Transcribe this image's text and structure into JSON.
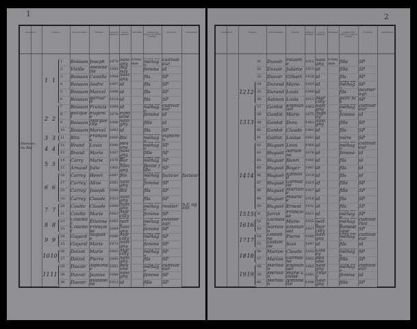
{
  "header_columns": [
    "Désignation",
    "Numéros",
    "Noms de famille",
    "Prénoms",
    "Année de naissance",
    "Lieu de naissance",
    "Nationalité",
    "Situation par rapport au chef de ménage",
    "Profession",
    "Observations"
  ],
  "left_page": {
    "page_number": "1",
    "margin_label": "Hameau du Bas",
    "households": [
      {
        "label": "1",
        "first": 1,
        "last": 6
      },
      {
        "label": "2",
        "first": 7,
        "last": 10
      },
      {
        "label": "3",
        "first": 11,
        "last": 11
      },
      {
        "label": "4",
        "first": 12,
        "last": 13
      },
      {
        "label": "5",
        "first": 14,
        "last": 15
      },
      {
        "label": "6",
        "first": 16,
        "last": 19
      },
      {
        "label": "7",
        "first": 20,
        "last": 21
      },
      {
        "label": "8",
        "first": 22,
        "last": 23
      },
      {
        "label": "9",
        "first": 24,
        "last": 25
      },
      {
        "label": "10",
        "first": 26,
        "last": 27
      },
      {
        "label": "11",
        "first": 28,
        "last": 30
      }
    ],
    "rows": [
      [
        "1",
        "Boisson",
        "Joseph",
        "1870",
        "Savigny",
        "Française",
        "chef de ménage",
        "cultivateur",
        ""
      ],
      [
        "2",
        "Vieille",
        "Antoinette",
        "1883",
        "Aignay",
        "",
        "femme",
        "id",
        ""
      ],
      [
        "3",
        "Boisson",
        "Camille",
        "1904",
        "Savigny",
        "",
        "fils",
        "SP",
        ""
      ],
      [
        "4",
        "Boisson",
        "André",
        "1907",
        "id",
        "",
        "fils",
        "SP",
        ""
      ],
      [
        "5",
        "Boisson",
        "Marcel",
        "1908",
        "id",
        "",
        "fils",
        "SP",
        ""
      ],
      [
        "6",
        "Boisson",
        "Bernard",
        "1910",
        "id",
        "",
        "fils",
        "SP",
        ""
      ],
      [
        "7",
        "Boisson",
        "Francis",
        "1864",
        "id",
        "",
        "chef de ménage",
        "cultivateur",
        ""
      ],
      [
        "8",
        "Bocquet",
        "Eugénie",
        "1878",
        "Fontaine",
        "",
        "femme",
        "id",
        ""
      ],
      [
        "9",
        "Boisson",
        "Marguerite",
        "1900",
        "Savigny",
        "",
        "fille",
        "id",
        ""
      ],
      [
        "10",
        "Boisson",
        "Marcel",
        "1902",
        "id",
        "",
        "fils",
        "SP",
        ""
      ],
      [
        "11",
        "Blin",
        "François",
        "1860",
        "Blé",
        "",
        "chef de ménage",
        "vigneron",
        ""
      ],
      [
        "12",
        "Brand",
        "Louis",
        "1880",
        "Beaune",
        "",
        "chef de ménage",
        "SP",
        ""
      ],
      [
        "13",
        "Brand",
        "Marie",
        "1907",
        "Savigny",
        "",
        "fille",
        "SP",
        ""
      ],
      [
        "14",
        "Carry",
        "Marie",
        "1870",
        "La Borne",
        "",
        "chef de ménage",
        "SP",
        ""
      ],
      [
        "15",
        "Arnaud",
        "Julie",
        "1902",
        "Savigny",
        "",
        "petite fille",
        "SP",
        ""
      ],
      [
        "16",
        "Carrey",
        "Henri",
        "1887",
        "Blé",
        "",
        "chef de ménage",
        "facteur",
        "facteur"
      ],
      [
        "17",
        "Carrey",
        "Aline",
        "1891",
        "Savigny",
        "",
        "femme",
        "SP",
        ""
      ],
      [
        "18",
        "Carrey",
        "Joseph",
        "1908",
        "Blé",
        "",
        "fils",
        "SP",
        ""
      ],
      [
        "19",
        "Carrey",
        "Claude",
        "1913",
        "Savigny",
        "",
        "fils",
        "SP",
        ""
      ],
      [
        "20",
        "Coutte",
        "Claude",
        "1860",
        "Savigny",
        "",
        "chef de ménage",
        "rentier",
        "S.P. agent"
      ],
      [
        "21",
        "Coutte",
        "Marie",
        "1863",
        "Marcilly",
        "",
        "femme",
        "SP",
        ""
      ],
      [
        "22",
        "Couchot",
        "Étienne",
        "1862",
        "Bonnette",
        "",
        "chef de ménage",
        "ouvrier agr.",
        ""
      ],
      [
        "23",
        "Couchot",
        "Françoise",
        "1864",
        "Savigny",
        "",
        "femme",
        "SP",
        ""
      ],
      [
        "24",
        "Guyard",
        "Auguste",
        "1866",
        "Marcilly",
        "",
        "chef de ménage",
        "SP",
        ""
      ],
      [
        "25",
        "Guyard",
        "Marie",
        "1873",
        "Savigny",
        "",
        "femme",
        "SP",
        ""
      ],
      [
        "26",
        "Doizot",
        "Marie",
        "1863",
        "Marcilly",
        "",
        "chef de ménage",
        "SP",
        ""
      ],
      [
        "27",
        "Doizot",
        "Pierre",
        "1891",
        "Savigny",
        "",
        "fils",
        "SP",
        ""
      ],
      [
        "28",
        "Duvoir",
        "Alphonse",
        "1881",
        "Beaune",
        "",
        "chef de ménage",
        "cultivateur",
        ""
      ],
      [
        "29",
        "Duvoir",
        "Jeanne",
        "1889",
        "Savigny",
        "",
        "femme",
        "SP",
        ""
      ],
      [
        "30",
        "Duvoir",
        "Madeleine",
        "1913",
        "id",
        "",
        "fille",
        "SP",
        ""
      ]
    ]
  },
  "right_page": {
    "page_number": "2",
    "households": [
      {
        "label": "12",
        "first": 34,
        "last": 36
      },
      {
        "label": "13",
        "first": 37,
        "last": 41
      },
      {
        "label": "14",
        "first": 42,
        "last": 50
      },
      {
        "label": "15",
        "first": 51,
        "last": 51
      },
      {
        "label": "16",
        "first": 52,
        "last": 53
      },
      {
        "label": "17",
        "first": 54,
        "last": 55
      },
      {
        "label": "18",
        "first": 56,
        "last": 57
      },
      {
        "label": "19",
        "first": 58,
        "last": 60
      }
    ],
    "rows": [
      [
        "31",
        "Duvoir",
        "Paulette",
        "1912",
        "Savigny",
        "Française",
        "fille",
        "SP",
        ""
      ],
      [
        "32",
        "Duvoir",
        "Juliette",
        "1913",
        "id",
        "",
        "fille",
        "SP",
        ""
      ],
      [
        "33",
        "Duvoir",
        "Gilbert",
        "1920",
        "id",
        "",
        "fils",
        "SP",
        ""
      ],
      [
        "34",
        "Durand",
        "Marie",
        "1853",
        "id",
        "",
        "chef de ménage",
        "SP",
        ""
      ],
      [
        "35",
        "Durand",
        "Louis",
        "1900",
        "id",
        "",
        "fils",
        "ouvrier agr.",
        ""
      ],
      [
        "36",
        "Salmon",
        "Louis",
        "1913",
        "Marcilly",
        "",
        "petit fils",
        "SP",
        ""
      ],
      [
        "37",
        "Gardot",
        "Emmanuel",
        "1862",
        "Savigny",
        "",
        "chef de ménage",
        "cultivateur",
        ""
      ],
      [
        "38",
        "Gardot",
        "Marie",
        "1872",
        "Aignay",
        "",
        "femme",
        "id",
        ""
      ],
      [
        "39",
        "Gardot",
        "Dora",
        "1901",
        "Savigny",
        "",
        "fille",
        "SP",
        ""
      ],
      [
        "40",
        "Gardot",
        "Claude",
        "1903",
        "id",
        "",
        "fils",
        "SP",
        ""
      ],
      [
        "41",
        "Gaillot",
        "Louise",
        "1861",
        "id",
        "",
        "mère",
        "SP",
        ""
      ],
      [
        "42",
        "Huguet",
        "Léon",
        "1868",
        "id",
        "",
        "chef de ménage",
        "cultivateur",
        ""
      ],
      [
        "43",
        "Huguet",
        "Adrienne",
        "1878",
        "id",
        "",
        "femme",
        "id",
        ""
      ],
      [
        "44",
        "Huguet",
        "Henri",
        "1905",
        "id",
        "",
        "fils",
        "id",
        ""
      ],
      [
        "45",
        "Huguet",
        "Roger",
        "1907",
        "id",
        "",
        "fils",
        "id",
        ""
      ],
      [
        "46",
        "Huguet",
        "Edmond",
        "1910",
        "id",
        "",
        "fils",
        "id",
        ""
      ],
      [
        "47",
        "Huguet",
        "Germaine",
        "1913",
        "id",
        "",
        "fille",
        "SP",
        ""
      ],
      [
        "48",
        "Huguet",
        "Marcelle",
        "1917",
        "id",
        "",
        "fille",
        "SP",
        ""
      ],
      [
        "49",
        "Huguet",
        "Maurice",
        "1918",
        "id",
        "",
        "fils",
        "SP",
        ""
      ],
      [
        "50",
        "Huguet",
        "Ernest",
        "1922",
        "id",
        "",
        "fils",
        "SP",
        ""
      ],
      [
        "51",
        "Jarrot",
        "Françoise",
        "1851",
        "id",
        "",
        "chef de ménage",
        "SP",
        ""
      ],
      [
        "52",
        "Lachaise",
        "Marie",
        "1855",
        "Bonnette",
        "",
        "chef de ménage",
        "cultivatrice",
        ""
      ],
      [
        "53",
        "Sarrazin",
        "Emmanuel",
        "1857",
        "Marcilly",
        "",
        "domestique",
        "SP",
        ""
      ],
      [
        "54",
        "Lestanne",
        "Pierre",
        "1860",
        "Savigny",
        "",
        "chef de ménage",
        "cultivateur",
        ""
      ],
      [
        "55",
        "Lestanne",
        "Jean",
        "1897",
        "id",
        "",
        "fils",
        "id",
        ""
      ],
      [
        "56",
        "Marion",
        "Claude",
        "1853",
        "Gissey",
        "",
        "chef de ménage",
        "SP",
        ""
      ],
      [
        "57",
        "Marion",
        "Germaine",
        "1902",
        "Beaune",
        "",
        "fille",
        "SP",
        ""
      ],
      [
        "58",
        "Mérillon",
        "Emmanuel",
        "1865",
        "Savigny",
        "",
        "chef de ménage",
        "cultivateur",
        ""
      ],
      [
        "59",
        "Mérillon",
        "Marie Louise",
        "1881",
        "Thury",
        "",
        "femme",
        "id",
        ""
      ],
      [
        "60",
        "Mérillon",
        "Antoinette",
        "1906",
        "Savigny",
        "",
        "fille",
        "SP",
        ""
      ]
    ]
  }
}
